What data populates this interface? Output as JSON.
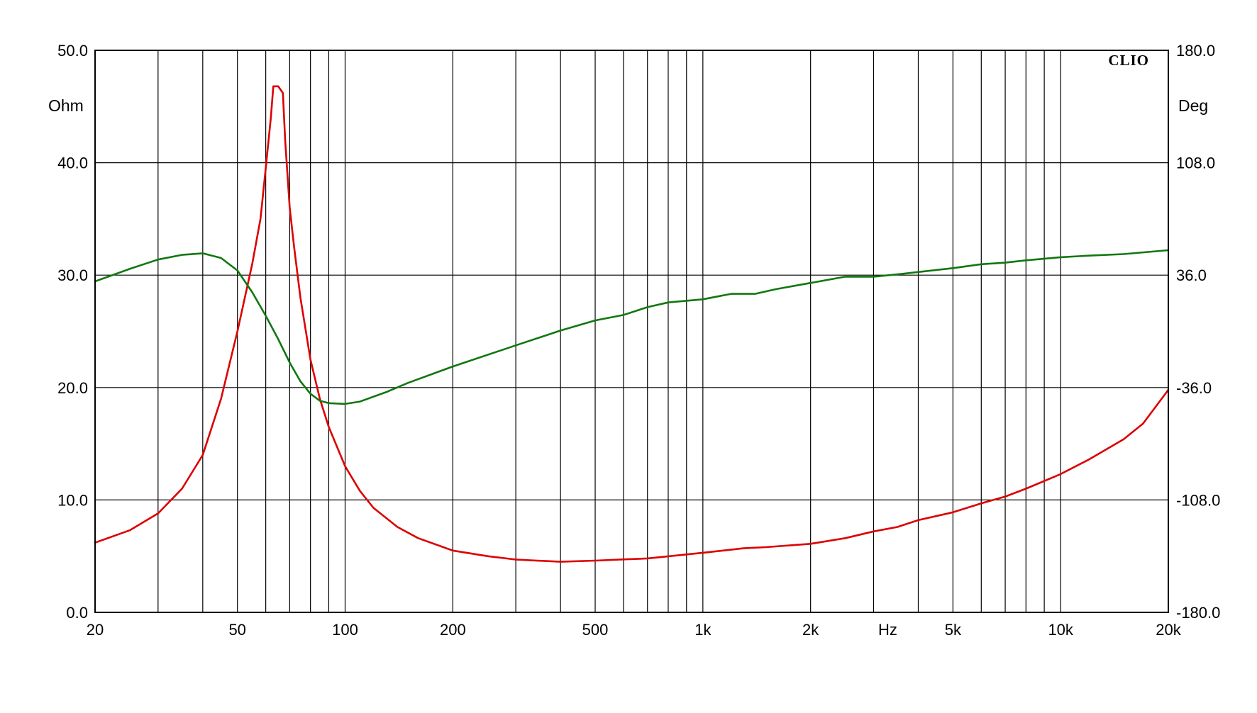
{
  "chart_data": {
    "type": "line",
    "brand": "CLIO",
    "x_axis": {
      "scale": "log",
      "range": [
        20,
        20000
      ],
      "unit_label": "Hz",
      "unit_label_at": 3000,
      "tick_labels": [
        {
          "value": 20,
          "label": "20"
        },
        {
          "value": 50,
          "label": "50"
        },
        {
          "value": 100,
          "label": "100"
        },
        {
          "value": 200,
          "label": "200"
        },
        {
          "value": 500,
          "label": "500"
        },
        {
          "value": 1000,
          "label": "1k"
        },
        {
          "value": 2000,
          "label": "2k"
        },
        {
          "value": 5000,
          "label": "5k"
        },
        {
          "value": 10000,
          "label": "10k"
        },
        {
          "value": 20000,
          "label": "20k"
        }
      ],
      "gridlines": [
        20,
        30,
        40,
        50,
        60,
        70,
        80,
        90,
        100,
        200,
        300,
        400,
        500,
        600,
        700,
        800,
        900,
        1000,
        2000,
        3000,
        4000,
        5000,
        6000,
        7000,
        8000,
        9000,
        10000,
        20000
      ]
    },
    "y_left": {
      "unit_label": "Ohm",
      "range": [
        0,
        50
      ],
      "tick_labels": [
        "0.0",
        "10.0",
        "20.0",
        "30.0",
        "40.0",
        "50.0"
      ],
      "tick_values": [
        0,
        10,
        20,
        30,
        40,
        50
      ]
    },
    "y_right": {
      "unit_label": "Deg",
      "range": [
        -180,
        180
      ],
      "tick_labels": [
        "-180.0",
        "-108.0",
        "-36.0",
        "36.0",
        "108.0",
        "180.0"
      ],
      "tick_values": [
        -180,
        -108,
        -36,
        36,
        108,
        180
      ]
    },
    "grid": true,
    "series": [
      {
        "color": "#dd0000",
        "axis": "left",
        "points": [
          [
            20,
            6.2
          ],
          [
            25,
            7.3
          ],
          [
            30,
            8.8
          ],
          [
            35,
            11.0
          ],
          [
            40,
            14.0
          ],
          [
            45,
            19.0
          ],
          [
            50,
            25.0
          ],
          [
            55,
            31.0
          ],
          [
            58,
            35.0
          ],
          [
            60,
            39.5
          ],
          [
            62,
            44.0
          ],
          [
            63,
            46.8
          ],
          [
            65,
            46.8
          ],
          [
            67,
            46.2
          ],
          [
            68,
            42.0
          ],
          [
            70,
            36.0
          ],
          [
            72,
            32.5
          ],
          [
            75,
            28.0
          ],
          [
            80,
            22.5
          ],
          [
            85,
            19.0
          ],
          [
            90,
            16.5
          ],
          [
            100,
            13.0
          ],
          [
            110,
            10.8
          ],
          [
            120,
            9.3
          ],
          [
            140,
            7.6
          ],
          [
            160,
            6.6
          ],
          [
            200,
            5.5
          ],
          [
            250,
            5.0
          ],
          [
            300,
            4.7
          ],
          [
            400,
            4.5
          ],
          [
            500,
            4.6
          ],
          [
            700,
            4.8
          ],
          [
            1000,
            5.3
          ],
          [
            1300,
            5.7
          ],
          [
            1500,
            5.8
          ],
          [
            2000,
            6.1
          ],
          [
            2500,
            6.6
          ],
          [
            3000,
            7.2
          ],
          [
            3500,
            7.6
          ],
          [
            4000,
            8.2
          ],
          [
            5000,
            8.9
          ],
          [
            6000,
            9.7
          ],
          [
            7000,
            10.3
          ],
          [
            8000,
            11.0
          ],
          [
            10000,
            12.3
          ],
          [
            12000,
            13.6
          ],
          [
            15000,
            15.4
          ],
          [
            17000,
            16.8
          ],
          [
            20000,
            19.8
          ]
        ]
      },
      {
        "color": "#117711",
        "axis": "right",
        "points": [
          [
            20,
            32.0
          ],
          [
            25,
            40.0
          ],
          [
            30,
            46.0
          ],
          [
            35,
            49.0
          ],
          [
            40,
            50.0
          ],
          [
            45,
            47.0
          ],
          [
            50,
            39.0
          ],
          [
            55,
            25.0
          ],
          [
            60,
            10.0
          ],
          [
            65,
            -5.0
          ],
          [
            70,
            -20.0
          ],
          [
            75,
            -32.0
          ],
          [
            80,
            -40.0
          ],
          [
            85,
            -44.5
          ],
          [
            90,
            -46.0
          ],
          [
            100,
            -46.5
          ],
          [
            110,
            -45.0
          ],
          [
            130,
            -39.0
          ],
          [
            150,
            -33.0
          ],
          [
            200,
            -22.5
          ],
          [
            300,
            -9.0
          ],
          [
            400,
            0.5
          ],
          [
            500,
            7.0
          ],
          [
            600,
            10.5
          ],
          [
            700,
            15.5
          ],
          [
            800,
            18.5
          ],
          [
            1000,
            20.5
          ],
          [
            1200,
            24.0
          ],
          [
            1400,
            24.0
          ],
          [
            1600,
            27.0
          ],
          [
            2000,
            31.0
          ],
          [
            2500,
            35.0
          ],
          [
            3000,
            35.0
          ],
          [
            3500,
            36.5
          ],
          [
            4000,
            38.0
          ],
          [
            5000,
            40.5
          ],
          [
            6000,
            43.0
          ],
          [
            7000,
            44.0
          ],
          [
            8000,
            45.5
          ],
          [
            10000,
            47.5
          ],
          [
            12000,
            48.5
          ],
          [
            15000,
            49.5
          ],
          [
            20000,
            52.0
          ]
        ]
      }
    ]
  }
}
